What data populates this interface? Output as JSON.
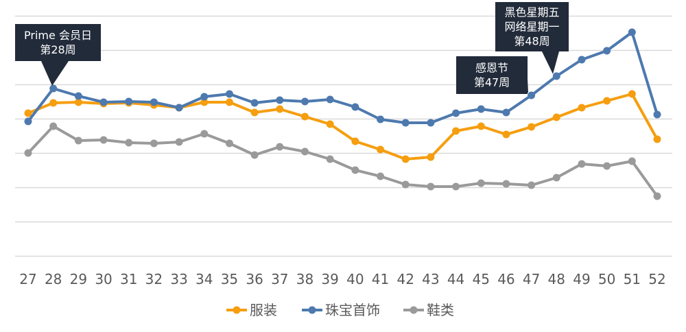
{
  "chart_data": {
    "type": "line",
    "title": "",
    "xlabel": "",
    "ylabel": "",
    "categories": [
      "27",
      "28",
      "29",
      "30",
      "31",
      "32",
      "33",
      "34",
      "35",
      "36",
      "37",
      "38",
      "39",
      "40",
      "41",
      "42",
      "43",
      "44",
      "45",
      "46",
      "47",
      "48",
      "49",
      "50",
      "51",
      "52"
    ],
    "ylim": [
      0,
      7
    ],
    "y_tick_labels_shown": false,
    "grid": true,
    "legend_position": "bottom",
    "series": [
      {
        "name": "服装",
        "color": "#F59E10",
        "values": [
          4.16,
          4.46,
          4.48,
          4.44,
          4.46,
          4.4,
          4.32,
          4.48,
          4.48,
          4.18,
          4.28,
          4.06,
          3.84,
          3.34,
          3.1,
          2.82,
          2.88,
          3.64,
          3.78,
          3.54,
          3.76,
          4.04,
          4.32,
          4.52,
          4.72,
          3.4
        ]
      },
      {
        "name": "珠宝首饰",
        "color": "#4D79AE",
        "values": [
          3.92,
          4.88,
          4.66,
          4.48,
          4.5,
          4.48,
          4.32,
          4.64,
          4.72,
          4.46,
          4.54,
          4.5,
          4.56,
          4.34,
          3.98,
          3.88,
          3.88,
          4.16,
          4.28,
          4.18,
          4.68,
          5.24,
          5.72,
          5.98,
          6.52,
          4.12
        ]
      },
      {
        "name": "鞋类",
        "color": "#9A9A9A",
        "values": [
          3.0,
          3.78,
          3.36,
          3.38,
          3.3,
          3.28,
          3.32,
          3.56,
          3.28,
          2.94,
          3.18,
          3.04,
          2.82,
          2.5,
          2.32,
          2.08,
          2.02,
          2.02,
          2.12,
          2.1,
          2.06,
          2.28,
          2.68,
          2.62,
          2.76,
          1.74
        ]
      }
    ],
    "annotations": [
      {
        "lines": [
          "Prime 会员日",
          "第28周"
        ],
        "category": "28"
      },
      {
        "lines": [
          "感恩节",
          "第47周"
        ],
        "category": "47"
      },
      {
        "lines": [
          "黑色星期五",
          "网络星期一",
          "第48周"
        ],
        "category": "48"
      }
    ],
    "annotation_color": "#222B3A"
  }
}
